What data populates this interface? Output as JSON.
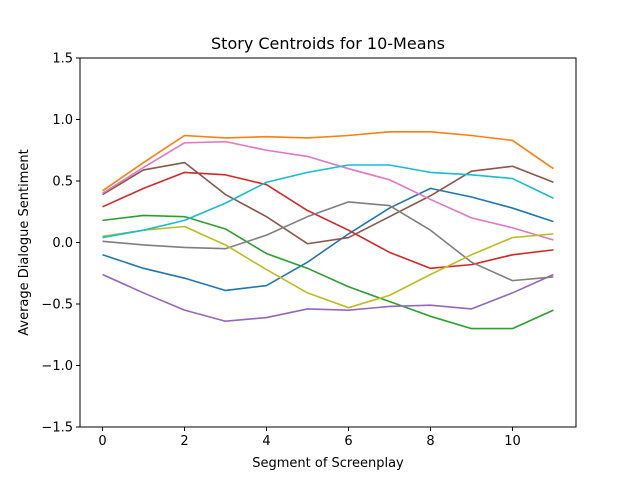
{
  "chart_data": {
    "type": "line",
    "title": "Story Centroids for 10-Means",
    "xlabel": "Segment of Screenplay",
    "ylabel": "Average Dialogue Sentiment",
    "xlim": [
      -0.55,
      11.55
    ],
    "ylim": [
      -1.5,
      1.5
    ],
    "xticks": [
      0,
      2,
      4,
      6,
      8,
      10
    ],
    "yticks": [
      -1.5,
      -1.0,
      -0.5,
      0.0,
      0.5,
      1.0,
      1.5
    ],
    "ytick_labels": [
      "−1.5",
      "−1.0",
      "−0.5",
      "0.0",
      "0.5",
      "1.0",
      "1.5"
    ],
    "grid": false,
    "legend": "none",
    "x": [
      0,
      1,
      2,
      3,
      4,
      5,
      6,
      7,
      8,
      9,
      10,
      11
    ],
    "series": [
      {
        "color": "#1f77b4",
        "values": [
          -0.1,
          -0.21,
          -0.29,
          -0.39,
          -0.35,
          -0.16,
          0.07,
          0.28,
          0.44,
          0.37,
          0.28,
          0.17
        ]
      },
      {
        "color": "#ff7f0e",
        "values": [
          0.42,
          0.65,
          0.87,
          0.85,
          0.86,
          0.85,
          0.87,
          0.9,
          0.9,
          0.87,
          0.83,
          0.6
        ]
      },
      {
        "color": "#2ca02c",
        "values": [
          0.18,
          0.22,
          0.21,
          0.11,
          -0.09,
          -0.21,
          -0.36,
          -0.48,
          -0.6,
          -0.7,
          -0.7,
          -0.55
        ]
      },
      {
        "color": "#d62728",
        "values": [
          0.29,
          0.44,
          0.57,
          0.55,
          0.47,
          0.26,
          0.1,
          -0.08,
          -0.21,
          -0.18,
          -0.1,
          -0.06
        ]
      },
      {
        "color": "#9467bd",
        "values": [
          -0.26,
          -0.41,
          -0.55,
          -0.64,
          -0.61,
          -0.54,
          -0.55,
          -0.52,
          -0.51,
          -0.54,
          -0.41,
          -0.26
        ]
      },
      {
        "color": "#8c564b",
        "values": [
          0.39,
          0.59,
          0.65,
          0.39,
          0.21,
          -0.01,
          0.04,
          0.21,
          0.38,
          0.58,
          0.62,
          0.49
        ]
      },
      {
        "color": "#e377c2",
        "values": [
          0.4,
          0.61,
          0.81,
          0.82,
          0.75,
          0.7,
          0.6,
          0.51,
          0.35,
          0.2,
          0.12,
          0.02
        ]
      },
      {
        "color": "#7f7f7f",
        "values": [
          0.01,
          -0.02,
          -0.04,
          -0.05,
          0.06,
          0.21,
          0.33,
          0.3,
          0.1,
          -0.16,
          -0.31,
          -0.28
        ]
      },
      {
        "color": "#bcbd22",
        "values": [
          0.05,
          0.1,
          0.13,
          -0.02,
          -0.22,
          -0.41,
          -0.53,
          -0.43,
          -0.26,
          -0.1,
          0.04,
          0.07
        ]
      },
      {
        "color": "#17becf",
        "values": [
          0.04,
          0.1,
          0.18,
          0.32,
          0.49,
          0.57,
          0.63,
          0.63,
          0.57,
          0.55,
          0.52,
          0.36
        ]
      }
    ]
  }
}
